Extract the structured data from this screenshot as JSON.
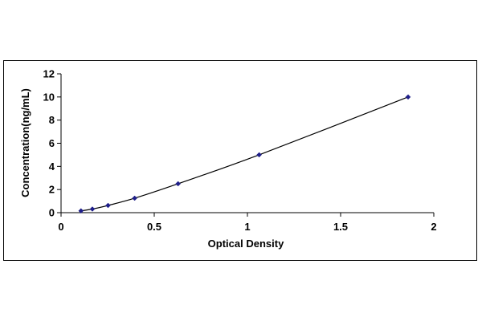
{
  "chart_data": {
    "type": "scatter",
    "title": "",
    "xlabel": "Optical Density",
    "ylabel": "Concentration(ng/mL)",
    "xlim": [
      0,
      2
    ],
    "ylim": [
      0,
      12
    ],
    "x_ticks": [
      "0",
      "0.5",
      "1",
      "1.5",
      "2"
    ],
    "y_ticks": [
      "0",
      "2",
      "4",
      "6",
      "8",
      "10",
      "12"
    ],
    "grid": false,
    "legend": "none",
    "trendline": "smooth curve through points",
    "series": [
      {
        "x": [
          0.107,
          0.168,
          0.252,
          0.395,
          0.628,
          1.063,
          1.862
        ],
        "y": [
          0.156,
          0.312,
          0.625,
          1.25,
          2.5,
          5,
          10
        ],
        "color": "#1f1f8a",
        "marker": "diamond"
      }
    ]
  }
}
